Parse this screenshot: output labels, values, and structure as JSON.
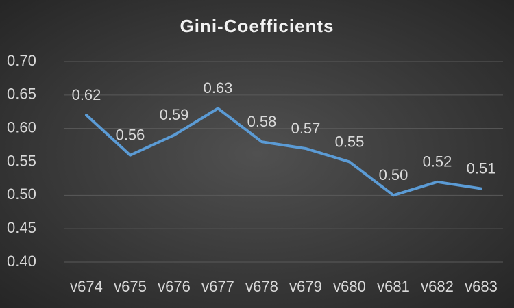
{
  "chart_data": {
    "type": "line",
    "title": "Gini-Coefficients",
    "categories": [
      "v674",
      "v675",
      "v676",
      "v677",
      "v678",
      "v679",
      "v680",
      "v681",
      "v682",
      "v683"
    ],
    "series": [
      {
        "name": "Gini-Coefficients",
        "color": "#5b9bd5",
        "values": [
          0.62,
          0.56,
          0.59,
          0.63,
          0.58,
          0.57,
          0.55,
          0.5,
          0.52,
          0.51
        ],
        "value_labels": [
          "0.62",
          "0.56",
          "0.59",
          "0.63",
          "0.58",
          "0.57",
          "0.55",
          "0.50",
          "0.52",
          "0.51"
        ]
      }
    ],
    "ylim": [
      0.4,
      0.7
    ],
    "yticks": [
      {
        "value": 0.4,
        "label": "0.40"
      },
      0.45,
      {
        "value": 0.5,
        "label": "0.50"
      },
      0.55,
      {
        "value": 0.6,
        "label": "0.60"
      },
      0.65,
      {
        "value": 0.7,
        "label": "0.70"
      }
    ],
    "grid": true
  }
}
